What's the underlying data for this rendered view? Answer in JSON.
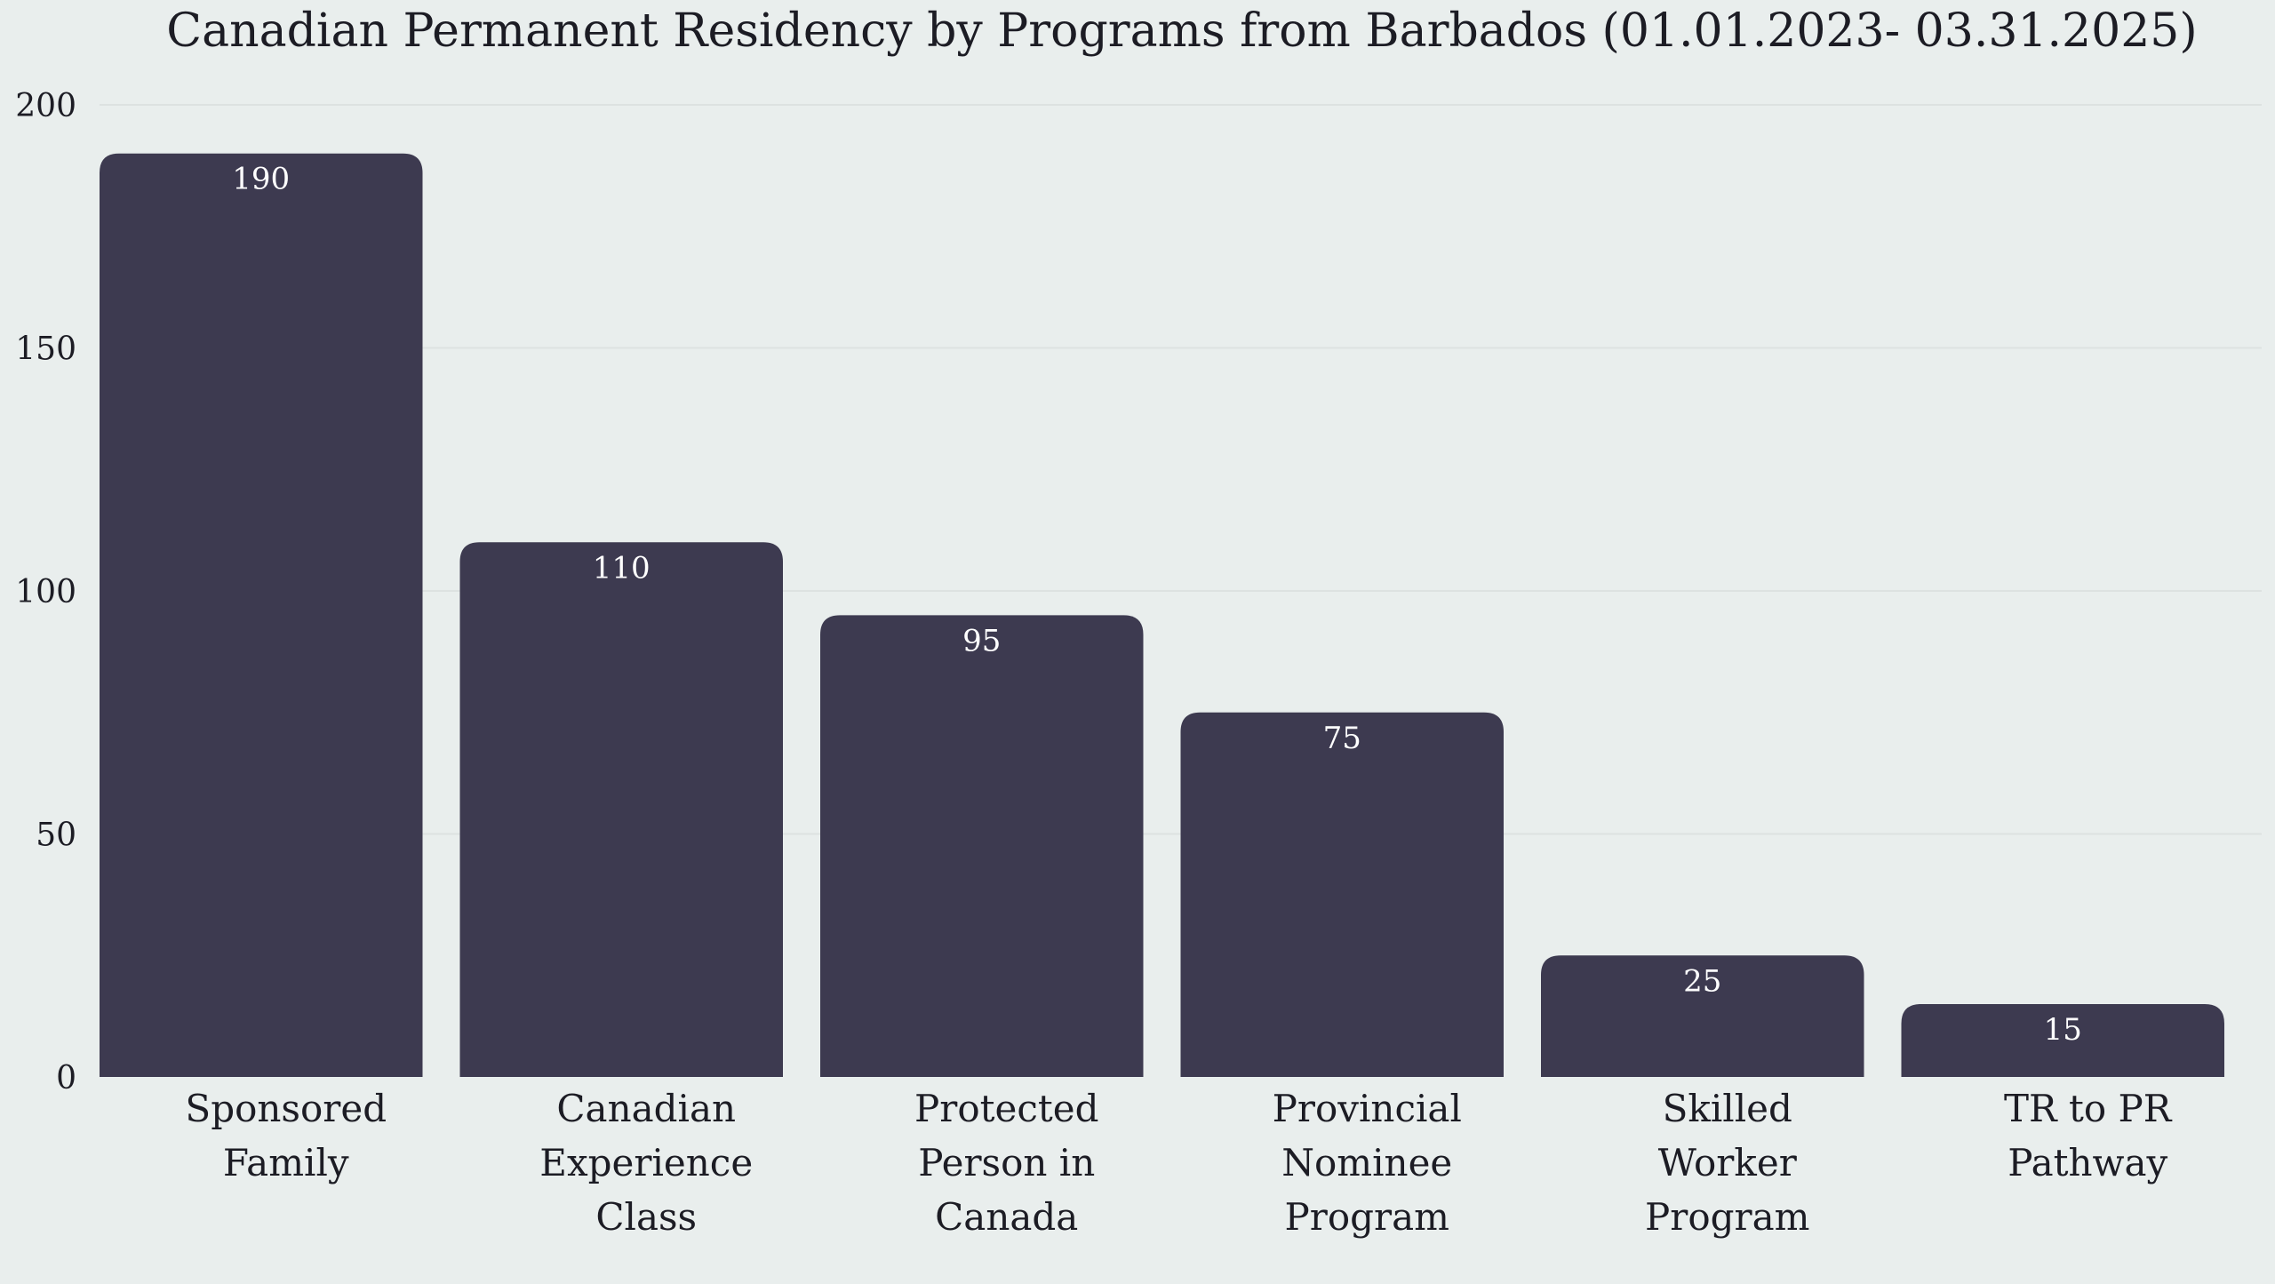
{
  "chart_data": {
    "type": "bar",
    "title": "Canadian Permanent Residency by Programs from Barbados (01.01.2023- 03.31.2025)",
    "xlabel": "",
    "ylabel": "",
    "categories": [
      [
        "Sponsored",
        "Family"
      ],
      [
        "Canadian",
        "Experience",
        "Class"
      ],
      [
        "Protected",
        "Person in",
        "Canada"
      ],
      [
        "Provincial",
        "Nominee",
        "Program"
      ],
      [
        "Skilled",
        "Worker",
        "Program"
      ],
      [
        "TR to PR",
        "Pathway"
      ]
    ],
    "values": [
      190,
      110,
      95,
      75,
      25,
      15
    ],
    "data_labels": [
      "190",
      "110",
      "95",
      "75",
      "25",
      "15"
    ],
    "ylim": [
      0,
      200
    ],
    "yticks": [
      0,
      50,
      100,
      150,
      200
    ],
    "grid": true,
    "legend": "none",
    "colors": {
      "bar": "#3d3a50",
      "background": "#e9eeed",
      "text": "#1c1c24",
      "data_label": "#ffffff",
      "grid": "#dde2e1"
    }
  }
}
